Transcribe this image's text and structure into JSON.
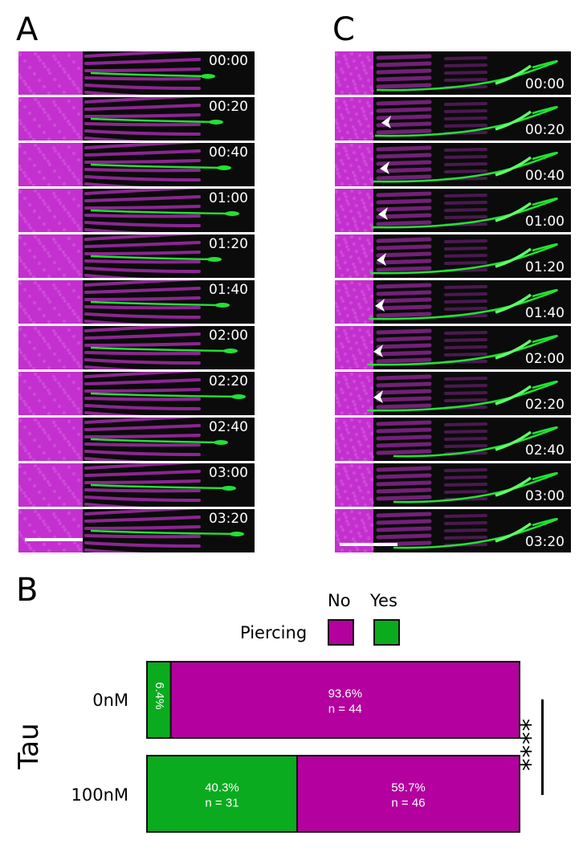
{
  "panels": {
    "a": "A",
    "b": "B",
    "c": "C"
  },
  "kymograph_a": {
    "times": [
      "00:00",
      "00:20",
      "00:40",
      "01:00",
      "01:20",
      "01:40",
      "02:00",
      "02:20",
      "02:40",
      "03:00",
      "03:20"
    ]
  },
  "kymograph_c": {
    "times": [
      "00:00",
      "00:20",
      "00:40",
      "01:00",
      "01:20",
      "01:40",
      "02:00",
      "02:20",
      "02:40",
      "03:00",
      "03:20"
    ],
    "arrowhead_frames": [
      false,
      true,
      true,
      true,
      true,
      true,
      true,
      true,
      false,
      false,
      false
    ]
  },
  "colors": {
    "no": "#b3009e",
    "yes": "#0aab1e",
    "membrane": "#c42fd0",
    "filament": "#22e233"
  },
  "chart_data": {
    "type": "bar",
    "orientation": "horizontal",
    "stacked": true,
    "normalized_percent": true,
    "ylabel": "Tau",
    "legend_title": "Piercing",
    "legend": {
      "no": "No",
      "yes": "Yes"
    },
    "categories": [
      "0nM",
      "100nM"
    ],
    "series": [
      {
        "name": "Yes",
        "values": [
          6.4,
          40.3
        ],
        "labels": [
          "6.4%",
          "40.3%"
        ],
        "counts": [
          "",
          "n = 31"
        ]
      },
      {
        "name": "No",
        "values": [
          93.6,
          59.7
        ],
        "labels": [
          "93.6%",
          "59.7%"
        ],
        "counts": [
          "n = 44",
          "n = 46"
        ]
      }
    ],
    "significance": "****"
  }
}
